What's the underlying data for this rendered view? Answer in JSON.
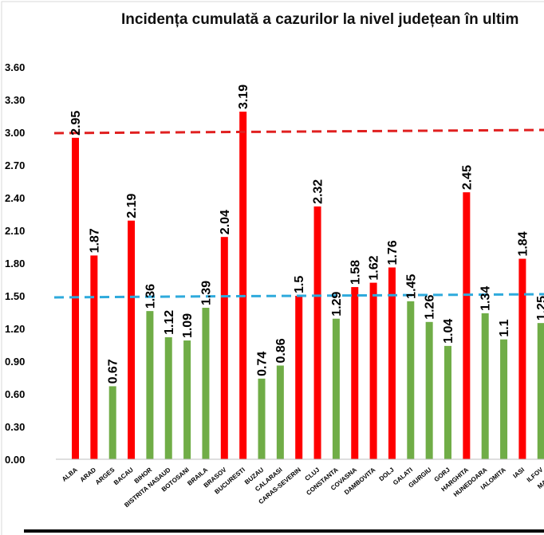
{
  "chart_data": {
    "type": "bar",
    "title": "Incidența cumulată a cazurilor la nivel județean în ultim",
    "categories": [
      "ALBA",
      "ARAD",
      "ARGES",
      "BACAU",
      "BIHOR",
      "BISTRITA NASAUD",
      "BOTOSANI",
      "BRAILA",
      "BRASOV",
      "BUCURESTI",
      "BUZAU",
      "CALARASI",
      "CARAS-SEVERIN",
      "CLUJ",
      "CONSTANTA",
      "COVASNA",
      "DAMBOVITA",
      "DOLJ",
      "GALATI",
      "GIURGIU",
      "GORJ",
      "HARGHITA",
      "HUNEDOARA",
      "IALOMITA",
      "IASI",
      "ILFOV",
      "MARAMU"
    ],
    "values": [
      2.95,
      1.87,
      0.67,
      2.19,
      1.36,
      1.12,
      1.09,
      1.39,
      2.04,
      3.19,
      0.74,
      0.86,
      1.5,
      2.32,
      1.29,
      1.58,
      1.62,
      1.76,
      1.45,
      1.26,
      1.04,
      2.45,
      1.34,
      1.1,
      1.84,
      1.25,
      null
    ],
    "value_labels": [
      "2.95",
      "1.87",
      "0.67",
      "2.19",
      "1.36",
      "1.12",
      "1.09",
      "1.39",
      "2.04",
      "3.19",
      "0.74",
      "0.86",
      "1.5",
      "2.32",
      "1.29",
      "1.58",
      "1.62",
      "1.76",
      "1.45",
      "1.26",
      "1.04",
      "2.45",
      "1.34",
      "1.1",
      "1.84",
      "1.25",
      ""
    ],
    "colors": {
      "above": "#ff0000",
      "below": "#70ad47",
      "threshold_high": "#e02020",
      "threshold_low": "#2eaadc"
    },
    "thresholds": [
      {
        "value": 3.0,
        "color": "#e02020"
      },
      {
        "value": 1.5,
        "color": "#2eaadc"
      }
    ],
    "yticks": [
      "0.00",
      "0.30",
      "0.60",
      "0.90",
      "1.20",
      "1.50",
      "1.80",
      "2.10",
      "2.40",
      "2.70",
      "3.00",
      "3.30",
      "3.60"
    ],
    "ylim": [
      0,
      3.6
    ],
    "grid": false,
    "legend": "none"
  }
}
